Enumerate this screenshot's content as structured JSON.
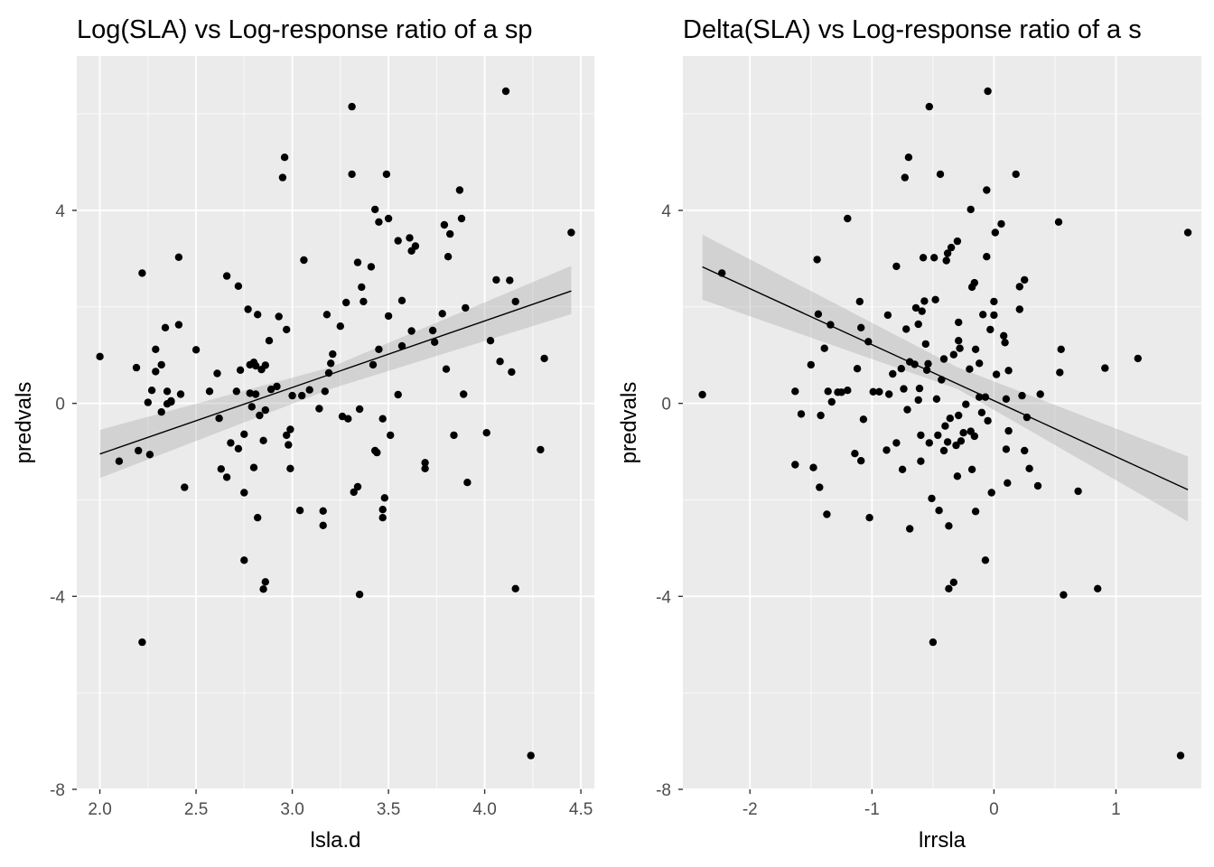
{
  "chart_data": [
    {
      "type": "scatter",
      "title": "Log(SLA) vs Log-response ratio of a sp",
      "xlabel": "lsla.d",
      "ylabel": "predvals",
      "xlim": [
        1.88,
        4.57
      ],
      "ylim": [
        -8,
        7.2
      ],
      "xticks": [
        2.0,
        2.5,
        3.0,
        3.5,
        4.0,
        4.5
      ],
      "xtick_labels": [
        "2.0",
        "2.5",
        "3.0",
        "3.5",
        "4.0",
        "4.5"
      ],
      "yticks": [
        -8,
        -4,
        0,
        4
      ],
      "ytick_labels": [
        "-8",
        "-4",
        "0",
        "4"
      ],
      "grid": true,
      "background": "#ebebeb",
      "point_color": "#000000",
      "fit": {
        "type": "linear",
        "x": [
          2.0,
          4.45
        ],
        "y": [
          -1.05,
          2.33
        ],
        "ci_lower": [
          -1.55,
          1.85
        ],
        "ci_upper": [
          -0.55,
          2.85
        ],
        "ci_x": [
          2.0,
          3.2,
          4.45
        ],
        "ci_lo": [
          -1.55,
          0.3,
          1.85
        ],
        "ci_hi": [
          -0.55,
          0.75,
          2.85
        ]
      },
      "points": [
        [
          2.0,
          0.97
        ],
        [
          2.1,
          -1.2
        ],
        [
          2.19,
          0.74
        ],
        [
          2.2,
          -0.98
        ],
        [
          2.22,
          2.7
        ],
        [
          2.22,
          -4.95
        ],
        [
          2.25,
          0.02
        ],
        [
          2.26,
          -1.06
        ],
        [
          2.27,
          0.27
        ],
        [
          2.29,
          1.12
        ],
        [
          2.29,
          0.66
        ],
        [
          2.32,
          0.8
        ],
        [
          2.32,
          -0.18
        ],
        [
          2.34,
          1.57
        ],
        [
          2.35,
          0.25
        ],
        [
          2.35,
          -0.01
        ],
        [
          2.37,
          0.05
        ],
        [
          2.37,
          0.03
        ],
        [
          2.41,
          3.03
        ],
        [
          2.41,
          1.63
        ],
        [
          2.42,
          0.19
        ],
        [
          2.44,
          -1.74
        ],
        [
          2.5,
          1.11
        ],
        [
          2.57,
          0.25
        ],
        [
          2.61,
          0.62
        ],
        [
          2.62,
          -0.31
        ],
        [
          2.63,
          -1.36
        ],
        [
          2.66,
          -1.53
        ],
        [
          2.66,
          2.64
        ],
        [
          2.68,
          -0.82
        ],
        [
          2.71,
          0.25
        ],
        [
          2.72,
          -0.94
        ],
        [
          2.72,
          2.43
        ],
        [
          2.73,
          0.69
        ],
        [
          2.75,
          -3.25
        ],
        [
          2.75,
          -1.85
        ],
        [
          2.75,
          -0.64
        ],
        [
          2.77,
          1.95
        ],
        [
          2.78,
          0.21
        ],
        [
          2.78,
          0.8
        ],
        [
          2.79,
          -0.07
        ],
        [
          2.8,
          0.85
        ],
        [
          2.8,
          -1.33
        ],
        [
          2.81,
          0.78
        ],
        [
          2.81,
          0.19
        ],
        [
          2.82,
          1.84
        ],
        [
          2.82,
          -2.37
        ],
        [
          2.83,
          -0.25
        ],
        [
          2.84,
          0.7
        ],
        [
          2.85,
          -3.85
        ],
        [
          2.85,
          -0.77
        ],
        [
          2.86,
          0.79
        ],
        [
          2.86,
          -3.7
        ],
        [
          2.86,
          -0.14
        ],
        [
          2.88,
          1.3
        ],
        [
          2.89,
          0.29
        ],
        [
          2.92,
          0.35
        ],
        [
          2.93,
          1.8
        ],
        [
          2.95,
          4.68
        ],
        [
          2.96,
          5.1
        ],
        [
          2.97,
          1.53
        ],
        [
          2.97,
          -0.66
        ],
        [
          2.98,
          -0.86
        ],
        [
          2.99,
          -1.35
        ],
        [
          2.99,
          -0.54
        ],
        [
          3.0,
          0.16
        ],
        [
          3.04,
          -2.22
        ],
        [
          3.05,
          0.16
        ],
        [
          3.06,
          2.97
        ],
        [
          3.09,
          0.28
        ],
        [
          3.14,
          -0.11
        ],
        [
          3.16,
          -2.23
        ],
        [
          3.16,
          -2.53
        ],
        [
          3.17,
          0.25
        ],
        [
          3.18,
          1.84
        ],
        [
          3.19,
          0.63
        ],
        [
          3.2,
          0.83
        ],
        [
          3.21,
          1.02
        ],
        [
          3.25,
          1.6
        ],
        [
          3.26,
          -0.27
        ],
        [
          3.28,
          2.09
        ],
        [
          3.29,
          -0.32
        ],
        [
          3.31,
          6.15
        ],
        [
          3.31,
          4.75
        ],
        [
          3.32,
          -1.84
        ],
        [
          3.34,
          2.92
        ],
        [
          3.34,
          -1.73
        ],
        [
          3.35,
          -3.96
        ],
        [
          3.35,
          -0.12
        ],
        [
          3.36,
          2.41
        ],
        [
          3.37,
          2.11
        ],
        [
          3.41,
          2.83
        ],
        [
          3.42,
          0.8
        ],
        [
          3.43,
          -0.98
        ],
        [
          3.43,
          4.02
        ],
        [
          3.44,
          -1.02
        ],
        [
          3.45,
          1.12
        ],
        [
          3.45,
          3.76
        ],
        [
          3.47,
          -2.37
        ],
        [
          3.47,
          -2.2
        ],
        [
          3.47,
          -0.32
        ],
        [
          3.48,
          -1.96
        ],
        [
          3.49,
          4.75
        ],
        [
          3.5,
          3.83
        ],
        [
          3.5,
          1.81
        ],
        [
          3.51,
          -0.66
        ],
        [
          3.55,
          3.37
        ],
        [
          3.55,
          0.18
        ],
        [
          3.57,
          2.13
        ],
        [
          3.57,
          1.19
        ],
        [
          3.61,
          3.43
        ],
        [
          3.62,
          1.5
        ],
        [
          3.62,
          3.16
        ],
        [
          3.64,
          3.26
        ],
        [
          3.69,
          -1.23
        ],
        [
          3.69,
          -1.35
        ],
        [
          3.73,
          1.51
        ],
        [
          3.74,
          1.27
        ],
        [
          3.78,
          1.86
        ],
        [
          3.79,
          3.7
        ],
        [
          3.8,
          0.71
        ],
        [
          3.81,
          3.04
        ],
        [
          3.82,
          3.51
        ],
        [
          3.84,
          -0.66
        ],
        [
          3.87,
          4.42
        ],
        [
          3.88,
          3.83
        ],
        [
          3.89,
          0.19
        ],
        [
          3.9,
          1.98
        ],
        [
          3.91,
          -1.64
        ],
        [
          4.01,
          -0.61
        ],
        [
          4.03,
          1.3
        ],
        [
          4.06,
          2.56
        ],
        [
          4.08,
          0.87
        ],
        [
          4.11,
          6.47
        ],
        [
          4.13,
          2.55
        ],
        [
          4.14,
          0.65
        ],
        [
          4.16,
          2.11
        ],
        [
          4.16,
          -3.84
        ],
        [
          4.24,
          -7.3
        ],
        [
          4.29,
          -0.96
        ],
        [
          4.31,
          0.93
        ],
        [
          4.45,
          3.54
        ]
      ]
    },
    {
      "type": "scatter",
      "title": "Delta(SLA) vs Log-response ratio of a s",
      "xlabel": "lrrsla",
      "ylabel": "predvals",
      "xlim": [
        -2.55,
        1.7
      ],
      "ylim": [
        -8,
        7.2
      ],
      "xticks": [
        -2,
        -1,
        0,
        1
      ],
      "xtick_labels": [
        "-2",
        "-1",
        "0",
        "1"
      ],
      "yticks": [
        -8,
        -4,
        0,
        4
      ],
      "ytick_labels": [
        "-8",
        "-4",
        "0",
        "4"
      ],
      "grid": true,
      "background": "#ebebeb",
      "point_color": "#000000",
      "fit": {
        "type": "linear",
        "x": [
          -2.39,
          1.59
        ],
        "y": [
          2.83,
          -1.79
        ],
        "ci_x": [
          -2.39,
          -0.3,
          1.59
        ],
        "ci_lo": [
          2.15,
          0.3,
          -2.45
        ],
        "ci_hi": [
          3.5,
          0.75,
          -1.1
        ]
      },
      "points": [
        [
          -2.39,
          0.18
        ],
        [
          -2.23,
          2.7
        ],
        [
          -1.63,
          0.25
        ],
        [
          -1.63,
          -1.27
        ],
        [
          -1.58,
          -0.22
        ],
        [
          -1.5,
          0.8
        ],
        [
          -1.48,
          -1.33
        ],
        [
          -1.45,
          2.98
        ],
        [
          -1.44,
          1.85
        ],
        [
          -1.43,
          -1.74
        ],
        [
          -1.42,
          -0.25
        ],
        [
          -1.39,
          1.14
        ],
        [
          -1.37,
          -2.3
        ],
        [
          -1.36,
          0.25
        ],
        [
          -1.34,
          1.63
        ],
        [
          -1.33,
          0.03
        ],
        [
          -1.28,
          0.23
        ],
        [
          -1.25,
          0.23
        ],
        [
          -1.2,
          3.83
        ],
        [
          -1.2,
          0.27
        ],
        [
          -1.14,
          -1.04
        ],
        [
          -1.12,
          0.72
        ],
        [
          -1.1,
          2.11
        ],
        [
          -1.09,
          -1.19
        ],
        [
          -1.09,
          1.57
        ],
        [
          -1.07,
          -0.33
        ],
        [
          -1.03,
          1.28
        ],
        [
          -1.02,
          -2.37
        ],
        [
          -0.99,
          0.24
        ],
        [
          -0.94,
          0.24
        ],
        [
          -0.88,
          -0.97
        ],
        [
          -0.87,
          1.83
        ],
        [
          -0.86,
          0.19
        ],
        [
          -0.83,
          0.61
        ],
        [
          -0.8,
          2.84
        ],
        [
          -0.8,
          -0.82
        ],
        [
          -0.76,
          0.72
        ],
        [
          -0.75,
          -1.37
        ],
        [
          -0.74,
          0.3
        ],
        [
          -0.73,
          4.68
        ],
        [
          -0.72,
          1.54
        ],
        [
          -0.71,
          -0.13
        ],
        [
          -0.7,
          5.1
        ],
        [
          -0.69,
          -2.6
        ],
        [
          -0.69,
          0.86
        ],
        [
          -0.65,
          0.81
        ],
        [
          -0.64,
          1.98
        ],
        [
          -0.62,
          1.64
        ],
        [
          -0.62,
          0.07
        ],
        [
          -0.61,
          0.31
        ],
        [
          -0.6,
          -0.66
        ],
        [
          -0.6,
          -1.2
        ],
        [
          -0.59,
          1.91
        ],
        [
          -0.58,
          3.02
        ],
        [
          -0.57,
          2.12
        ],
        [
          -0.56,
          1.23
        ],
        [
          -0.55,
          0.69
        ],
        [
          -0.54,
          0.82
        ],
        [
          -0.53,
          6.15
        ],
        [
          -0.53,
          -0.82
        ],
        [
          -0.51,
          -1.97
        ],
        [
          -0.5,
          -4.95
        ],
        [
          -0.49,
          3.02
        ],
        [
          -0.48,
          2.15
        ],
        [
          -0.47,
          0.09
        ],
        [
          -0.46,
          -0.66
        ],
        [
          -0.45,
          -2.22
        ],
        [
          -0.44,
          4.75
        ],
        [
          -0.43,
          0.49
        ],
        [
          -0.41,
          0.92
        ],
        [
          -0.41,
          -0.98
        ],
        [
          -0.4,
          -0.47
        ],
        [
          -0.39,
          2.96
        ],
        [
          -0.38,
          3.11
        ],
        [
          -0.38,
          -0.8
        ],
        [
          -0.37,
          -2.54
        ],
        [
          -0.37,
          -3.84
        ],
        [
          -0.36,
          -0.31
        ],
        [
          -0.35,
          3.23
        ],
        [
          -0.33,
          -3.71
        ],
        [
          -0.33,
          1.01
        ],
        [
          -0.31,
          -0.87
        ],
        [
          -0.3,
          -1.51
        ],
        [
          -0.3,
          3.36
        ],
        [
          -0.29,
          1.68
        ],
        [
          -0.29,
          -0.25
        ],
        [
          -0.29,
          1.3
        ],
        [
          -0.28,
          1.14
        ],
        [
          -0.27,
          -0.78
        ],
        [
          -0.25,
          -0.61
        ],
        [
          -0.23,
          -0.02
        ],
        [
          -0.2,
          0.71
        ],
        [
          -0.19,
          4.02
        ],
        [
          -0.19,
          -0.58
        ],
        [
          -0.18,
          -1.37
        ],
        [
          -0.18,
          2.41
        ],
        [
          -0.16,
          2.5
        ],
        [
          -0.16,
          -0.68
        ],
        [
          -0.15,
          -2.24
        ],
        [
          -0.15,
          1.12
        ],
        [
          -0.12,
          0.83
        ],
        [
          -0.12,
          0.13
        ],
        [
          -0.1,
          -0.19
        ],
        [
          -0.09,
          1.84
        ],
        [
          -0.07,
          0.13
        ],
        [
          -0.07,
          -3.25
        ],
        [
          -0.06,
          4.42
        ],
        [
          -0.06,
          3.04
        ],
        [
          -0.05,
          6.47
        ],
        [
          -0.05,
          -0.36
        ],
        [
          -0.03,
          1.53
        ],
        [
          -0.02,
          -1.85
        ],
        [
          0.0,
          2.11
        ],
        [
          0.0,
          1.83
        ],
        [
          0.01,
          3.54
        ],
        [
          0.02,
          0.6
        ],
        [
          0.06,
          3.72
        ],
        [
          0.08,
          1.4
        ],
        [
          0.09,
          1.26
        ],
        [
          0.1,
          0.09
        ],
        [
          0.1,
          -0.95
        ],
        [
          0.11,
          -1.65
        ],
        [
          0.12,
          -0.57
        ],
        [
          0.12,
          0.68
        ],
        [
          0.18,
          4.75
        ],
        [
          0.21,
          1.95
        ],
        [
          0.21,
          2.42
        ],
        [
          0.23,
          0.16
        ],
        [
          0.25,
          -0.98
        ],
        [
          0.25,
          2.56
        ],
        [
          0.27,
          -0.29
        ],
        [
          0.29,
          -1.35
        ],
        [
          0.36,
          -1.71
        ],
        [
          0.38,
          0.19
        ],
        [
          0.53,
          3.76
        ],
        [
          0.54,
          0.64
        ],
        [
          0.55,
          1.12
        ],
        [
          0.57,
          -3.97
        ],
        [
          0.69,
          -1.82
        ],
        [
          0.85,
          -3.84
        ],
        [
          0.91,
          0.73
        ],
        [
          1.18,
          0.93
        ],
        [
          1.53,
          -7.3
        ],
        [
          1.59,
          3.54
        ]
      ]
    }
  ]
}
